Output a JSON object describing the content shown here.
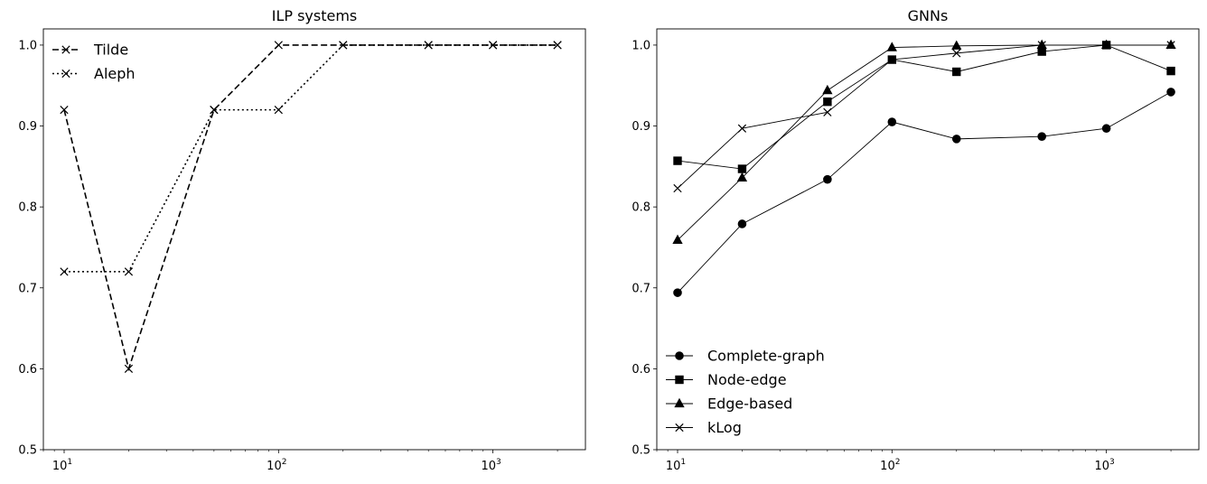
{
  "chart_data": [
    {
      "type": "line",
      "title": "ILP systems",
      "xlabel": "",
      "ylabel": "",
      "xscale": "log",
      "xlim": [
        8,
        2700
      ],
      "ylim": [
        0.5,
        1.02
      ],
      "xticks": [
        {
          "base": "10",
          "exp": "1"
        },
        {
          "base": "10",
          "exp": "2"
        },
        {
          "base": "10",
          "exp": "3"
        }
      ],
      "yticks": [
        "0.5",
        "0.6",
        "0.7",
        "0.8",
        "0.9",
        "1.0"
      ],
      "x": [
        10,
        20,
        50,
        100,
        200,
        500,
        1000,
        2000
      ],
      "series": [
        {
          "name": "Tilde",
          "values": [
            0.92,
            0.6,
            0.92,
            1.0,
            1.0,
            1.0,
            1.0,
            1.0
          ],
          "line_style": "dashed",
          "marker": "x",
          "color": "#000000"
        },
        {
          "name": "Aleph",
          "values": [
            0.72,
            0.72,
            0.92,
            0.92,
            1.0,
            1.0,
            1.0,
            1.0
          ],
          "line_style": "dotted",
          "marker": "x",
          "color": "#000000"
        }
      ],
      "legend_position": "upper-left",
      "grid": false
    },
    {
      "type": "line",
      "title": "GNNs",
      "xlabel": "",
      "ylabel": "",
      "xscale": "log",
      "xlim": [
        8,
        2700
      ],
      "ylim": [
        0.5,
        1.02
      ],
      "xticks": [
        {
          "base": "10",
          "exp": "1"
        },
        {
          "base": "10",
          "exp": "2"
        },
        {
          "base": "10",
          "exp": "3"
        }
      ],
      "yticks": [
        "0.5",
        "0.6",
        "0.7",
        "0.8",
        "0.9",
        "1.0"
      ],
      "x": [
        10,
        20,
        50,
        100,
        200,
        500,
        1000,
        2000
      ],
      "series": [
        {
          "name": "Complete-graph",
          "values": [
            0.694,
            0.779,
            0.834,
            0.905,
            0.884,
            0.887,
            0.897,
            0.942
          ],
          "line_style": "solid",
          "marker": "circle",
          "color": "#000000"
        },
        {
          "name": "Node-edge",
          "values": [
            0.857,
            0.847,
            0.93,
            0.982,
            0.967,
            0.992,
            1.0,
            0.968
          ],
          "line_style": "solid",
          "marker": "square",
          "color": "#000000"
        },
        {
          "name": "Edge-based",
          "values": [
            0.759,
            0.836,
            0.944,
            0.997,
            0.999,
            1.0,
            1.0,
            1.0
          ],
          "line_style": "solid",
          "marker": "triangle",
          "color": "#000000"
        },
        {
          "name": "kLog",
          "values": [
            0.823,
            0.897,
            0.917,
            0.982,
            0.99,
            1.0,
            1.0,
            1.0
          ],
          "line_style": "solid",
          "marker": "x",
          "color": "#000000"
        }
      ],
      "legend_position": "lower-left",
      "grid": false
    }
  ]
}
